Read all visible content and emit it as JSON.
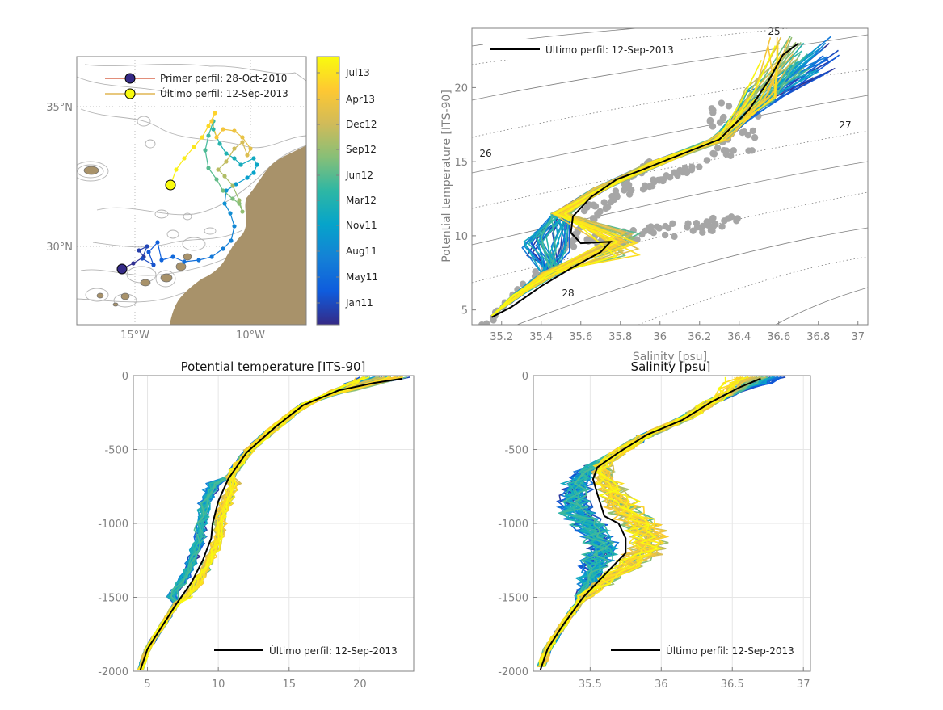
{
  "colors": {
    "axis": "#808080",
    "grid": "#e6e6e6",
    "land": "#a8926a",
    "latest": "#000000",
    "scatter": "#a6a6a6",
    "isopycnal": "#7f7f7f",
    "parula": [
      "#352a87",
      "#0f5cdd",
      "#1481d6",
      "#06a4ca",
      "#2eb7a4",
      "#87bf77",
      "#d1bb59",
      "#fec832",
      "#f9fb0e"
    ]
  },
  "map": {
    "xticks": [
      "15°W",
      "10°W"
    ],
    "yticks": [
      "35°N",
      "30°N"
    ],
    "legend": {
      "first": "Primer perfil: 28-Oct-2010",
      "last": "Último perfil: 12-Sep-2013"
    },
    "colorbar": [
      "Jul13",
      "Apr13",
      "Dec12",
      "Sep12",
      "Jun12",
      "Mar12",
      "Nov11",
      "Aug11",
      "May11",
      "Jan11"
    ]
  },
  "chart_data": [
    {
      "type": "scatter",
      "title": "",
      "xlabel": "Salinity [psu]",
      "ylabel": "Potential temperature [ITS-90]",
      "xlim": [
        35.05,
        37.05
      ],
      "ylim": [
        4,
        24
      ],
      "xticks": [
        "35.2",
        "35.4",
        "35.6",
        "35.8",
        "36",
        "36.2",
        "36.4",
        "36.6",
        "36.8",
        "37"
      ],
      "yticks": [
        "5",
        "10",
        "15",
        "20"
      ],
      "isopycnal_labels": [
        "25",
        "26",
        "27",
        "28"
      ],
      "legend": "Último perfil: 12-Sep-2013",
      "latest_profile": [
        [
          36.7,
          23
        ],
        [
          36.62,
          22.2
        ],
        [
          36.55,
          20.5
        ],
        [
          36.45,
          18.5
        ],
        [
          36.3,
          16.5
        ],
        [
          36.05,
          15.2
        ],
        [
          35.9,
          14.4
        ],
        [
          35.78,
          13.8
        ],
        [
          35.65,
          12.6
        ],
        [
          35.56,
          11.3
        ],
        [
          35.55,
          10.2
        ],
        [
          35.6,
          9.5
        ],
        [
          35.75,
          9.6
        ],
        [
          35.7,
          8.9
        ],
        [
          35.55,
          7.8
        ],
        [
          35.4,
          6.6
        ],
        [
          35.25,
          5.2
        ],
        [
          35.15,
          4.5
        ]
      ]
    },
    {
      "type": "line",
      "title": "Potential temperature [ITS-90]",
      "xlim": [
        4,
        23.8
      ],
      "ylim": [
        -2000,
        0
      ],
      "xticks": [
        "5",
        "10",
        "15",
        "20"
      ],
      "yticks": [
        "0",
        "-500",
        "-1000",
        "-1500",
        "-2000"
      ],
      "legend": "Último perfil: 12-Sep-2013",
      "latest_profile": [
        [
          23,
          -20
        ],
        [
          21,
          -50
        ],
        [
          18.5,
          -100
        ],
        [
          16,
          -200
        ],
        [
          14,
          -350
        ],
        [
          12,
          -520
        ],
        [
          10.7,
          -700
        ],
        [
          10,
          -850
        ],
        [
          9.6,
          -1000
        ],
        [
          9.5,
          -1100
        ],
        [
          8.9,
          -1250
        ],
        [
          8.1,
          -1400
        ],
        [
          7,
          -1550
        ],
        [
          6,
          -1700
        ],
        [
          5,
          -1850
        ],
        [
          4.5,
          -1990
        ]
      ]
    },
    {
      "type": "line",
      "title": "Salinity [psu]",
      "xlim": [
        35.1,
        37.05
      ],
      "ylim": [
        -2000,
        0
      ],
      "xticks": [
        "35.5",
        "36",
        "36.5",
        "37"
      ],
      "yticks": [
        "0",
        "-500",
        "-1000",
        "-1500",
        "-2000"
      ],
      "legend": "Último perfil: 12-Sep-2013",
      "latest_profile": [
        [
          36.7,
          -20
        ],
        [
          36.55,
          -80
        ],
        [
          36.35,
          -180
        ],
        [
          36.15,
          -300
        ],
        [
          35.9,
          -400
        ],
        [
          35.7,
          -520
        ],
        [
          35.55,
          -620
        ],
        [
          35.52,
          -700
        ],
        [
          35.55,
          -800
        ],
        [
          35.6,
          -950
        ],
        [
          35.7,
          -1000
        ],
        [
          35.75,
          -1100
        ],
        [
          35.75,
          -1200
        ],
        [
          35.6,
          -1350
        ],
        [
          35.45,
          -1500
        ],
        [
          35.3,
          -1700
        ],
        [
          35.2,
          -1850
        ],
        [
          35.15,
          -1990
        ]
      ]
    }
  ]
}
